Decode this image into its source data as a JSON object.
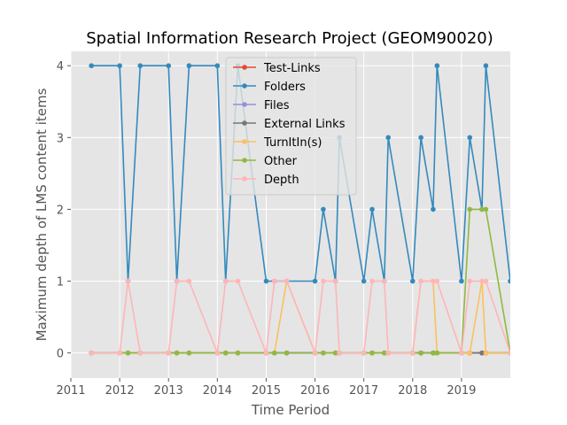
{
  "chart_data": {
    "type": "line",
    "title": "Spatial Information Research Project (GEOM90020)",
    "xlabel": "Time Period",
    "ylabel": "Maximum depth of LMS content items",
    "xlim": [
      2011.0,
      2020.0
    ],
    "ylim": [
      -0.35,
      4.2
    ],
    "x_ticks": [
      2011,
      2012,
      2013,
      2014,
      2015,
      2016,
      2017,
      2018,
      2019
    ],
    "x_tick_labels": [
      "2011",
      "2012",
      "2013",
      "2014",
      "2015",
      "2016",
      "2017",
      "2018",
      "2019"
    ],
    "y_ticks": [
      0,
      1,
      2,
      3,
      4
    ],
    "y_tick_labels": [
      "0",
      "1",
      "2",
      "3",
      "4"
    ],
    "grid": true,
    "legend_position": "top-center",
    "x": [
      2011.42,
      2012.0,
      2012.17,
      2012.42,
      2013.0,
      2013.17,
      2013.42,
      2014.0,
      2014.17,
      2014.42,
      2015.0,
      2015.17,
      2015.42,
      2016.0,
      2016.17,
      2016.42,
      2016.5,
      2017.0,
      2017.17,
      2017.42,
      2017.5,
      2018.0,
      2018.17,
      2018.42,
      2018.5,
      2019.0,
      2019.17,
      2019.42,
      2019.5,
      2020.0
    ],
    "series": [
      {
        "name": "Test-Links",
        "color": "#e24a33",
        "values": [
          0,
          0,
          0,
          0,
          0,
          0,
          0,
          0,
          0,
          0,
          0,
          0,
          0,
          0,
          0,
          0,
          0,
          0,
          0,
          0,
          0,
          0,
          0,
          0,
          0,
          0,
          0,
          0,
          0,
          0
        ]
      },
      {
        "name": "Folders",
        "color": "#348abd",
        "values": [
          4,
          4,
          1,
          4,
          4,
          1,
          4,
          4,
          1,
          4,
          1,
          1,
          1,
          1,
          2,
          1,
          3,
          1,
          2,
          1,
          3,
          1,
          3,
          2,
          4,
          1,
          3,
          2,
          4,
          1
        ]
      },
      {
        "name": "Files",
        "color": "#988ed5",
        "values": [
          0,
          0,
          0,
          0,
          0,
          0,
          0,
          0,
          0,
          0,
          0,
          0,
          0,
          0,
          0,
          0,
          0,
          0,
          0,
          0,
          0,
          0,
          0,
          0,
          0,
          0,
          0,
          0,
          0,
          0
        ]
      },
      {
        "name": "External Links",
        "color": "#777777",
        "values": [
          0,
          0,
          0,
          0,
          0,
          0,
          0,
          0,
          0,
          0,
          0,
          0,
          0,
          0,
          0,
          0,
          0,
          0,
          0,
          0,
          0,
          0,
          0,
          0,
          0,
          0,
          0,
          0,
          0,
          0
        ]
      },
      {
        "name": "TurnItIn(s)",
        "color": "#fbc15e",
        "values": [
          0,
          0,
          0,
          0,
          0,
          0,
          0,
          0,
          0,
          0,
          0,
          0,
          1,
          0,
          0,
          0,
          0,
          0,
          0,
          0,
          0,
          0,
          1,
          1,
          0,
          0,
          0,
          1,
          0,
          0
        ]
      },
      {
        "name": "Other",
        "color": "#8eba42",
        "values": [
          0,
          0,
          0,
          0,
          0,
          0,
          0,
          0,
          0,
          0,
          0,
          0,
          0,
          0,
          0,
          0,
          0,
          0,
          0,
          0,
          0,
          0,
          0,
          0,
          0,
          0,
          2,
          2,
          2,
          0
        ]
      },
      {
        "name": "Depth",
        "color": "#ffb5b8",
        "values": [
          0,
          0,
          1,
          0,
          0,
          1,
          1,
          0,
          1,
          1,
          0,
          1,
          1,
          0,
          1,
          1,
          0,
          0,
          1,
          1,
          0,
          0,
          1,
          1,
          1,
          0,
          1,
          1,
          1,
          0
        ]
      }
    ]
  }
}
